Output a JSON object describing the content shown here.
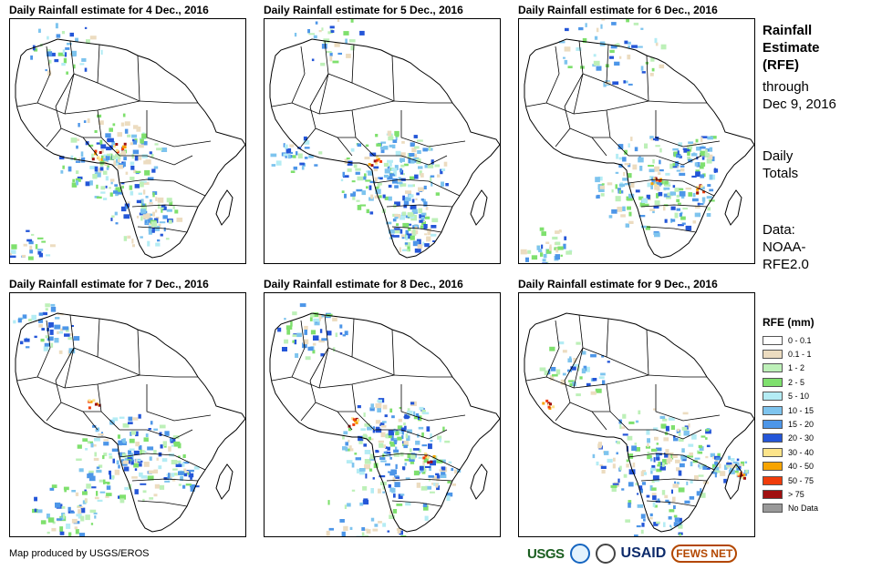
{
  "panels": [
    {
      "title": "Daily Rainfall estimate for 4 Dec., 2016"
    },
    {
      "title": "Daily Rainfall estimate for 5 Dec., 2016"
    },
    {
      "title": "Daily Rainfall estimate for 6 Dec., 2016"
    },
    {
      "title": "Daily Rainfall estimate for 7 Dec., 2016"
    },
    {
      "title": "Daily Rainfall estimate for 8 Dec., 2016"
    },
    {
      "title": "Daily Rainfall estimate for 9 Dec., 2016"
    }
  ],
  "sidebar": {
    "title_lines": [
      "Rainfall",
      "Estimate",
      "(RFE)"
    ],
    "through_label": "through",
    "through_date": "Dec 9, 2016",
    "totals_lines": [
      "Daily",
      "Totals"
    ],
    "data_lines": [
      "Data:",
      "NOAA-",
      "RFE2.0"
    ]
  },
  "legend": {
    "title": "RFE (mm)",
    "items": [
      {
        "label": "0 - 0.1",
        "color": "#ffffff"
      },
      {
        "label": "0.1 - 1",
        "color": "#ecdcc0"
      },
      {
        "label": "1 - 2",
        "color": "#bdf0b8"
      },
      {
        "label": "2 - 5",
        "color": "#7fe06e"
      },
      {
        "label": "5 - 10",
        "color": "#b4ecf4"
      },
      {
        "label": "10 - 15",
        "color": "#7ec4ee"
      },
      {
        "label": "15 - 20",
        "color": "#4d96e8"
      },
      {
        "label": "20 - 30",
        "color": "#2456d8"
      },
      {
        "label": "30 - 40",
        "color": "#fce48a"
      },
      {
        "label": "40 - 50",
        "color": "#f7a400"
      },
      {
        "label": "50 - 75",
        "color": "#f03c0a"
      },
      {
        "label": "> 75",
        "color": "#a01010"
      },
      {
        "label": "No Data",
        "color": "#999999"
      }
    ]
  },
  "footer": {
    "credit": "Map produced by USGS/EROS",
    "logos": {
      "usgs": "USGS",
      "usaid": "USAID",
      "fews": "FEWS NET"
    }
  }
}
